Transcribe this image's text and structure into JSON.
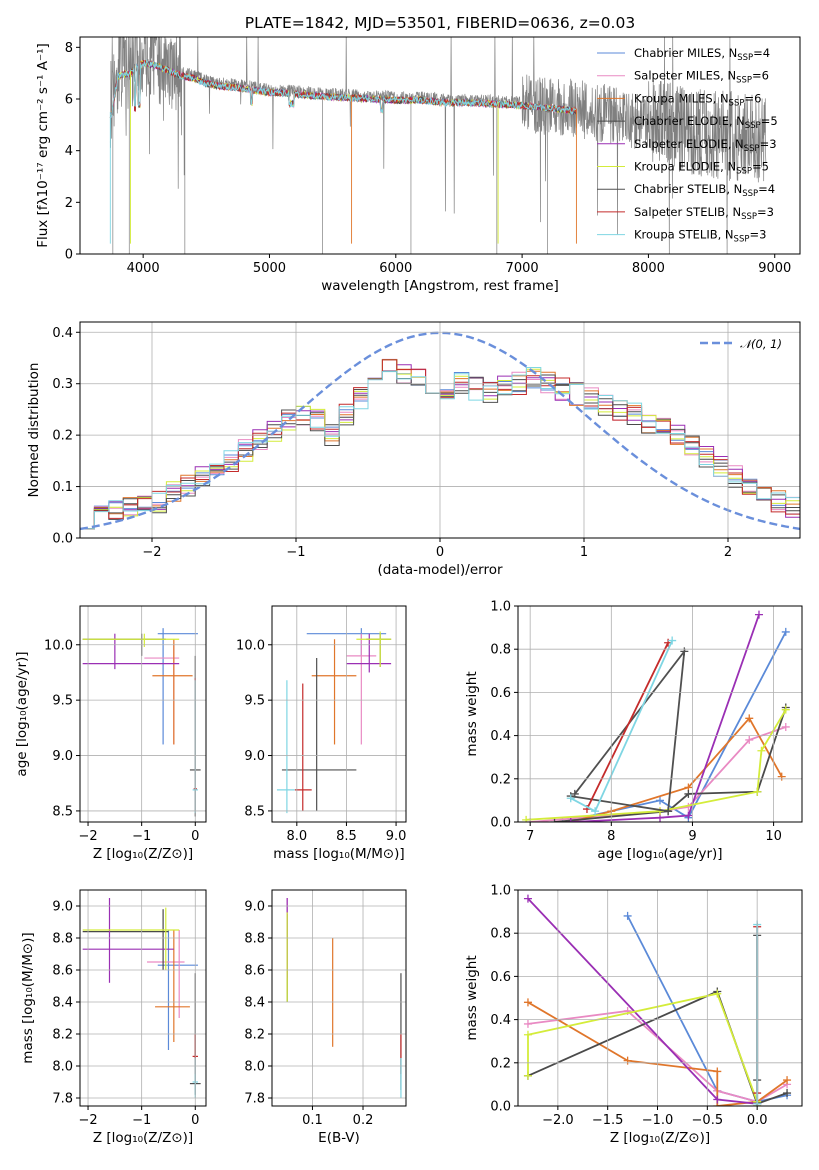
{
  "palette": [
    "#5b8ad8",
    "#e98ac3",
    "#e0762b",
    "#4a4a4a",
    "#9a2fb4",
    "#d4ec3a",
    "#505050",
    "#c42b2b",
    "#7fd6e3"
  ],
  "gray": "#808080",
  "chart_data": [
    {
      "id": "spectrum",
      "type": "line",
      "title": "PLATE=1842, MJD=53501, FIBERID=0636, z=0.03",
      "xlabel": "wavelength [Angstrom, rest frame]",
      "ylabel": "Flux [fλ10⁻¹⁷ erg cm⁻² s⁻¹ A⁻¹]",
      "xlim": [
        3500,
        9200
      ],
      "ylim": [
        0,
        8.4
      ],
      "xticks": [
        "4000",
        "5000",
        "6000",
        "7000",
        "8000",
        "9000"
      ],
      "yticks": [
        "0",
        "2",
        "4",
        "6",
        "8"
      ],
      "observed_range": [
        3740,
        8930
      ],
      "model_range": [
        3740,
        7430
      ],
      "x": [
        3750,
        3800,
        3900,
        4000,
        4100,
        4200,
        4300,
        4400,
        4500,
        4600,
        4800,
        5000,
        5200,
        5400,
        5600,
        5800,
        6000,
        6200,
        6400,
        6600,
        6800,
        7000,
        7200,
        7400,
        7600,
        7800,
        8000,
        8200,
        8400,
        8600,
        8800,
        8930
      ],
      "y": [
        5.5,
        7.0,
        7.1,
        7.5,
        7.4,
        7.2,
        7.0,
        6.9,
        6.7,
        6.6,
        6.5,
        6.35,
        6.3,
        6.2,
        6.15,
        6.1,
        6.05,
        6.05,
        5.95,
        5.95,
        5.9,
        5.85,
        5.75,
        5.65,
        5.5,
        5.3,
        5.0,
        4.9,
        4.75,
        4.6,
        4.5,
        4.3
      ],
      "legend": [
        {
          "label": "Chabrier MILES, N",
          "sub": "SSP",
          "rest": "=4"
        },
        {
          "label": "Salpeter MILES, N",
          "sub": "SSP",
          "rest": "=6"
        },
        {
          "label": "Kroupa MILES, N",
          "sub": "SSP",
          "rest": "=6"
        },
        {
          "label": "Chabrier ELODIE, N",
          "sub": "SSP",
          "rest": "=5"
        },
        {
          "label": "Salpeter ELODIE, N",
          "sub": "SSP",
          "rest": "=3"
        },
        {
          "label": "Kroupa ELODIE, N",
          "sub": "SSP",
          "rest": "=5"
        },
        {
          "label": "Chabrier STELIB, N",
          "sub": "SSP",
          "rest": "=4"
        },
        {
          "label": "Salpeter STELIB, N",
          "sub": "SSP",
          "rest": "=3"
        },
        {
          "label": "Kroupa STELIB, N",
          "sub": "SSP",
          "rest": "=3"
        }
      ]
    },
    {
      "id": "residuals",
      "type": "histogram",
      "xlabel": "(data-model)/error",
      "ylabel": "Normed distribution",
      "xlim": [
        -2.5,
        2.5
      ],
      "ylim": [
        0,
        0.42
      ],
      "xticks": [
        "−2",
        "−1",
        "0",
        "1",
        "2"
      ],
      "yticks": [
        "0.0",
        "0.1",
        "0.2",
        "0.3",
        "0.4"
      ],
      "bin_start": -2.5,
      "bin_width": 0.1,
      "base_values": [
        0.04,
        0.05,
        0.055,
        0.065,
        0.065,
        0.07,
        0.09,
        0.1,
        0.12,
        0.13,
        0.15,
        0.17,
        0.19,
        0.21,
        0.23,
        0.24,
        0.23,
        0.2,
        0.24,
        0.27,
        0.3,
        0.33,
        0.32,
        0.31,
        0.3,
        0.29,
        0.3,
        0.29,
        0.28,
        0.3,
        0.3,
        0.31,
        0.3,
        0.29,
        0.28,
        0.27,
        0.26,
        0.25,
        0.24,
        0.22,
        0.21,
        0.2,
        0.18,
        0.16,
        0.14,
        0.12,
        0.1,
        0.08,
        0.07,
        0.06
      ],
      "legend": "𝒩(0, 1)"
    },
    {
      "id": "age-vs-Z",
      "type": "errorbar",
      "xlabel": "Z [log₁₀(Z/Z⊙)]",
      "ylabel": "age  [log₁₀(age/yr)]",
      "xlim": [
        -2.15,
        0.2
      ],
      "ylim": [
        8.4,
        10.35
      ],
      "xticks": [
        "−2",
        "−1",
        "0"
      ],
      "yticks": [
        "8.5",
        "9.0",
        "9.5",
        "10.0"
      ],
      "points": [
        {
          "x": -0.6,
          "y": 10.1,
          "xe": [
            -0.7,
            0.05
          ],
          "ye": [
            9.1,
            10.15
          ]
        },
        {
          "x": -0.4,
          "y": 9.88,
          "xe": [
            -0.95,
            -0.3
          ],
          "ye": [
            9.1,
            10.0
          ]
        },
        {
          "x": -0.4,
          "y": 9.72,
          "xe": [
            -0.8,
            -0.05
          ],
          "ye": [
            9.1,
            10.05
          ]
        },
        {
          "x": -1.0,
          "y": 10.05,
          "xe": [
            -2.1,
            -0.55
          ],
          "ye": [
            9.9,
            10.1
          ]
        },
        {
          "x": -1.5,
          "y": 9.83,
          "xe": [
            -2.1,
            -0.3
          ],
          "ye": [
            9.78,
            10.1
          ]
        },
        {
          "x": -0.95,
          "y": 10.05,
          "xe": [
            -2.1,
            -0.3
          ],
          "ye": [
            9.98,
            10.1
          ]
        },
        {
          "x": 0.0,
          "y": 8.87,
          "xe": [
            -0.1,
            0.1
          ],
          "ye": [
            8.45,
            9.9
          ]
        },
        {
          "x": 0.0,
          "y": 8.7,
          "xe": [
            -0.03,
            0.03
          ],
          "ye": [
            8.5,
            9.7
          ]
        },
        {
          "x": 0.0,
          "y": 8.69,
          "xe": [
            -0.05,
            0.05
          ],
          "ye": [
            8.48,
            9.68
          ]
        }
      ]
    },
    {
      "id": "age-vs-mass",
      "type": "errorbar",
      "xlabel": "mass [log₁₀(M/M⊙)]",
      "ylabel": "",
      "xlim": [
        7.75,
        9.1
      ],
      "ylim": [
        8.4,
        10.35
      ],
      "xticks": [
        "8.0",
        "8.5",
        "9.0"
      ],
      "yticks": [
        "8.5",
        "9.0",
        "9.5",
        "10.0"
      ],
      "points": [
        {
          "x": 8.65,
          "y": 10.1,
          "xe": [
            8.1,
            8.9
          ],
          "ye": [
            9.9,
            10.15
          ]
        },
        {
          "x": 8.65,
          "y": 9.9,
          "xe": [
            8.5,
            8.8
          ],
          "ye": [
            9.1,
            10.1
          ]
        },
        {
          "x": 8.38,
          "y": 9.72,
          "xe": [
            8.15,
            8.6
          ],
          "ye": [
            9.1,
            10.05
          ]
        },
        {
          "x": 8.84,
          "y": 10.05,
          "xe": [
            8.7,
            8.95
          ],
          "ye": [
            9.8,
            10.1
          ]
        },
        {
          "x": 8.73,
          "y": 9.83,
          "xe": [
            8.5,
            8.95
          ],
          "ye": [
            9.75,
            10.1
          ]
        },
        {
          "x": 8.84,
          "y": 10.05,
          "xe": [
            8.6,
            8.95
          ],
          "ye": [
            9.8,
            10.12
          ]
        },
        {
          "x": 8.2,
          "y": 8.87,
          "xe": [
            7.85,
            8.6
          ],
          "ye": [
            8.5,
            9.88
          ]
        },
        {
          "x": 8.06,
          "y": 8.69,
          "xe": [
            7.98,
            8.15
          ],
          "ye": [
            8.5,
            9.65
          ]
        },
        {
          "x": 7.9,
          "y": 8.69,
          "xe": [
            7.8,
            7.98
          ],
          "ye": [
            8.48,
            9.68
          ]
        }
      ]
    },
    {
      "id": "weight-vs-age",
      "type": "line",
      "xlabel": "age  [log₁₀(age/yr)]",
      "ylabel": "mass weight",
      "xlim": [
        6.85,
        10.35
      ],
      "ylim": [
        0,
        1.0
      ],
      "xticks": [
        "7",
        "8",
        "9",
        "10"
      ],
      "yticks": [
        "0.0",
        "0.2",
        "0.4",
        "0.6",
        "0.8",
        "1.0"
      ],
      "series": [
        {
          "x": [
            7.4,
            8.6,
            8.95,
            10.15
          ],
          "y": [
            0.0,
            0.1,
            0.02,
            0.88
          ]
        },
        {
          "x": [
            7.0,
            8.6,
            8.95,
            9.7,
            10.15
          ],
          "y": [
            0.0,
            0.05,
            0.07,
            0.38,
            0.44
          ]
        },
        {
          "x": [
            7.5,
            8.0,
            8.95,
            9.7,
            10.1
          ],
          "y": [
            0.0,
            0.05,
            0.16,
            0.48,
            0.21
          ]
        },
        {
          "x": [
            7.3,
            8.7,
            8.95,
            9.8,
            10.15
          ],
          "y": [
            0.0,
            0.05,
            0.13,
            0.14,
            0.53
          ]
        },
        {
          "x": [
            7.5,
            8.6,
            8.95,
            9.82
          ],
          "y": [
            0.0,
            0.02,
            0.03,
            0.96
          ]
        },
        {
          "x": [
            6.95,
            8.6,
            9.8,
            9.85,
            10.15
          ],
          "y": [
            0.01,
            0.05,
            0.14,
            0.33,
            0.52
          ]
        },
        {
          "x": [
            7.5,
            8.7,
            8.9,
            7.55
          ],
          "y": [
            0.12,
            0.05,
            0.79,
            0.13
          ]
        },
        {
          "x": [
            7.7,
            8.7
          ],
          "y": [
            0.06,
            0.83
          ]
        },
        {
          "x": [
            7.5,
            7.8,
            8.75
          ],
          "y": [
            0.11,
            0.05,
            0.84
          ]
        }
      ]
    },
    {
      "id": "mass-vs-Z",
      "type": "errorbar",
      "xlabel": "Z [log₁₀(Z/Z⊙)]",
      "ylabel": "mass [log₁₀(M/M⊙)]",
      "xlim": [
        -2.15,
        0.2
      ],
      "ylim": [
        7.75,
        9.1
      ],
      "xticks": [
        "−2",
        "−1",
        "0"
      ],
      "yticks": [
        "7.8",
        "8.0",
        "8.2",
        "8.4",
        "8.6",
        "8.8",
        "9.0"
      ],
      "points": [
        {
          "x": -0.5,
          "y": 8.63,
          "xe": [
            -0.7,
            0.05
          ],
          "ye": [
            8.1,
            8.85
          ]
        },
        {
          "x": -0.3,
          "y": 8.65,
          "xe": [
            -0.9,
            -0.2
          ],
          "ye": [
            8.3,
            8.85
          ]
        },
        {
          "x": -0.4,
          "y": 8.37,
          "xe": [
            -0.75,
            -0.1
          ],
          "ye": [
            8.15,
            8.85
          ]
        },
        {
          "x": -0.6,
          "y": 8.84,
          "xe": [
            -2.1,
            -0.5
          ],
          "ye": [
            8.6,
            8.98
          ]
        },
        {
          "x": -1.6,
          "y": 8.73,
          "xe": [
            -2.1,
            -0.4
          ],
          "ye": [
            8.52,
            9.05
          ]
        },
        {
          "x": -0.55,
          "y": 8.85,
          "xe": [
            -2.1,
            -0.3
          ],
          "ye": [
            8.6,
            8.99
          ]
        },
        {
          "x": 0.0,
          "y": 7.89,
          "xe": [
            -0.1,
            0.1
          ],
          "ye": [
            7.82,
            8.58
          ]
        },
        {
          "x": 0.0,
          "y": 8.06,
          "xe": [
            -0.05,
            0.05
          ],
          "ye": [
            7.95,
            8.2
          ]
        },
        {
          "x": 0.0,
          "y": 7.9,
          "xe": [
            -0.05,
            0.05
          ],
          "ye": [
            7.8,
            8.05
          ]
        }
      ]
    },
    {
      "id": "mass-vs-ebv",
      "type": "errorbar",
      "xlabel": "E(B-V)",
      "ylabel": "",
      "xlim": [
        0.02,
        0.285
      ],
      "ylim": [
        7.75,
        9.1
      ],
      "xticks": [
        "0.1",
        "0.2"
      ],
      "yticks": [
        "7.8",
        "8.0",
        "8.2",
        "8.4",
        "8.6",
        "8.8",
        "9.0"
      ],
      "points": [
        {
          "x": 0.05,
          "y": 8.65,
          "ye": [
            8.4,
            8.95
          ]
        },
        {
          "x": 0.05,
          "y": 8.75,
          "ye": [
            8.45,
            9.05
          ]
        },
        {
          "x": 0.14,
          "y": 8.4,
          "ye": [
            8.12,
            8.8
          ]
        },
        {
          "x": 0.05,
          "y": 8.7,
          "ye": [
            8.4,
            8.95
          ]
        },
        {
          "x": 0.05,
          "y": 8.8,
          "ye": [
            8.55,
            9.05
          ]
        },
        {
          "x": 0.05,
          "y": 8.7,
          "ye": [
            8.4,
            8.96
          ]
        },
        {
          "x": 0.275,
          "y": 8.2,
          "ye": [
            7.85,
            8.58
          ]
        },
        {
          "x": 0.275,
          "y": 8.07,
          "ye": [
            7.95,
            8.2
          ]
        },
        {
          "x": 0.275,
          "y": 7.9,
          "ye": [
            7.8,
            8.05
          ]
        }
      ]
    },
    {
      "id": "weight-vs-Z",
      "type": "line",
      "xlabel": "Z [log₁₀(Z/Z⊙)]",
      "ylabel": "mass weight",
      "xlim": [
        -2.4,
        0.45
      ],
      "ylim": [
        0,
        1.0
      ],
      "xticks": [
        "−2.0",
        "−1.5",
        "−1.0",
        "−0.5",
        "0.0"
      ],
      "yticks": [
        "0.0",
        "0.2",
        "0.4",
        "0.6",
        "0.8",
        "1.0"
      ],
      "series": [
        {
          "x": [
            -1.3,
            -0.4,
            0.0,
            0.3
          ],
          "y": [
            0.88,
            0.07,
            0.02,
            0.05
          ]
        },
        {
          "x": [
            -2.3,
            -1.3,
            -0.4,
            0.0,
            0.3
          ],
          "y": [
            0.38,
            0.44,
            0.07,
            0.02,
            0.1
          ]
        },
        {
          "x": [
            -2.3,
            -1.3,
            -0.4,
            -0.4,
            0.0,
            0.3
          ],
          "y": [
            0.48,
            0.21,
            0.16,
            0.0,
            0.02,
            0.12
          ]
        },
        {
          "x": [
            -2.3,
            -0.4,
            0.0,
            0.3
          ],
          "y": [
            0.14,
            0.53,
            0.01,
            0.06
          ]
        },
        {
          "x": [
            -2.3,
            -0.4,
            0.0
          ],
          "y": [
            0.96,
            0.03,
            0.01
          ]
        },
        {
          "x": [
            -2.3,
            -2.3,
            -0.4,
            0.0,
            0.0
          ],
          "y": [
            0.14,
            0.33,
            0.52,
            0.02,
            0.0
          ]
        },
        {
          "x": [
            0.0,
            0.0,
            0.0
          ],
          "y": [
            0.79,
            0.12,
            0.0
          ]
        },
        {
          "x": [
            0.0,
            0.0
          ],
          "y": [
            0.83,
            0.06
          ]
        },
        {
          "x": [
            0.0,
            0.0
          ],
          "y": [
            0.84,
            0.01
          ]
        }
      ]
    }
  ]
}
